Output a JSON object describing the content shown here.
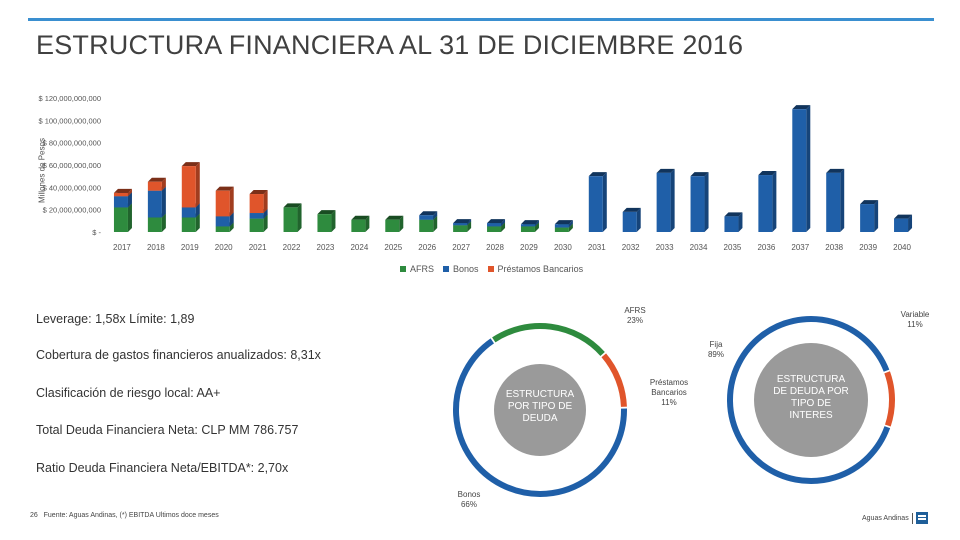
{
  "slide": {
    "title": "ESTRUCTURA FINANCIERA AL 31 DE DICIEMBRE 2016",
    "page_number": "26",
    "footnote": "Fuente: Aguas Andinas, (*) EBITDA Ultimos doce meses",
    "brand": "Aguas Andinas"
  },
  "colors": {
    "rule": "#3a8fd0",
    "afrs": "#2e8b3e",
    "bonos": "#1f5fa8",
    "prestamos": "#e0552b",
    "donut_text_bg": "#9a9a9a"
  },
  "metrics": [
    "Leverage: 1,58x  Límite: 1,89",
    "Cobertura de gastos financieros anualizados: 8,31x",
    "Clasificación de riesgo local: AA+",
    "Total Deuda Financiera Neta: CLP  MM 786.757",
    "Ratio Deuda Financiera Neta/EBITDA*: 2,70x"
  ],
  "chart_data": [
    {
      "type": "bar",
      "stacked": true,
      "title": "",
      "xlabel": "",
      "ylabel": "Millones de Pesos",
      "ylim": [
        0,
        120000000000
      ],
      "yticks": [
        0,
        20000000000,
        40000000000,
        60000000000,
        80000000000,
        100000000000,
        120000000000
      ],
      "ytick_labels": [
        "$ -",
        "$ 20,000,000,000",
        "$ 40,000,000,000",
        "$ 60,000,000,000",
        "$ 80,000,000,000",
        "$ 100,000,000,000",
        "$ 120,000,000,000"
      ],
      "categories": [
        "2017",
        "2018",
        "2019",
        "2020",
        "2021",
        "2022",
        "2023",
        "2024",
        "2025",
        "2026",
        "2027",
        "2028",
        "2029",
        "2030",
        "2031",
        "2032",
        "2033",
        "2034",
        "2035",
        "2036",
        "2037",
        "2038",
        "2039",
        "2040"
      ],
      "legend_position": "bottom",
      "series": [
        {
          "name": "AFRS",
          "values": [
            22000000000,
            13000000000,
            13000000000,
            5000000000,
            12000000000,
            22000000000,
            16000000000,
            11000000000,
            11000000000,
            11000000000,
            6000000000,
            5000000000,
            5000000000,
            4000000000,
            0,
            0,
            0,
            0,
            0,
            0,
            0,
            0,
            0,
            0
          ]
        },
        {
          "name": "Bonos",
          "values": [
            10000000000,
            24000000000,
            9000000000,
            9000000000,
            5000000000,
            0,
            0,
            0,
            0,
            4000000000,
            2000000000,
            3000000000,
            2000000000,
            3000000000,
            50000000000,
            18000000000,
            53000000000,
            50000000000,
            14000000000,
            51000000000,
            110000000000,
            53000000000,
            25000000000,
            12000000000
          ]
        },
        {
          "name": "Préstamos Bancarios",
          "values": [
            3000000000,
            8000000000,
            37000000000,
            23000000000,
            17000000000,
            0,
            0,
            0,
            0,
            0,
            0,
            0,
            0,
            0,
            0,
            0,
            0,
            0,
            0,
            0,
            0,
            0,
            0,
            0
          ]
        }
      ]
    },
    {
      "type": "pie",
      "donut": true,
      "title": "ESTRUCTURA POR TIPO DE DEUDA",
      "categories": [
        "AFRS",
        "Préstamos Bancarios",
        "Bonos"
      ],
      "values": [
        23,
        11,
        66
      ],
      "labels": [
        "AFRS\n23%",
        "Préstamos\nBancarios\n11%",
        "Bonos\n66%"
      ]
    },
    {
      "type": "pie",
      "donut": true,
      "title": "ESTRUCTURA DE DEUDA POR TIPO DE INTERES",
      "categories": [
        "Fija",
        "Variable"
      ],
      "values": [
        89,
        11
      ],
      "labels": [
        "Fija\n89%",
        "Variable\n11%"
      ]
    }
  ]
}
